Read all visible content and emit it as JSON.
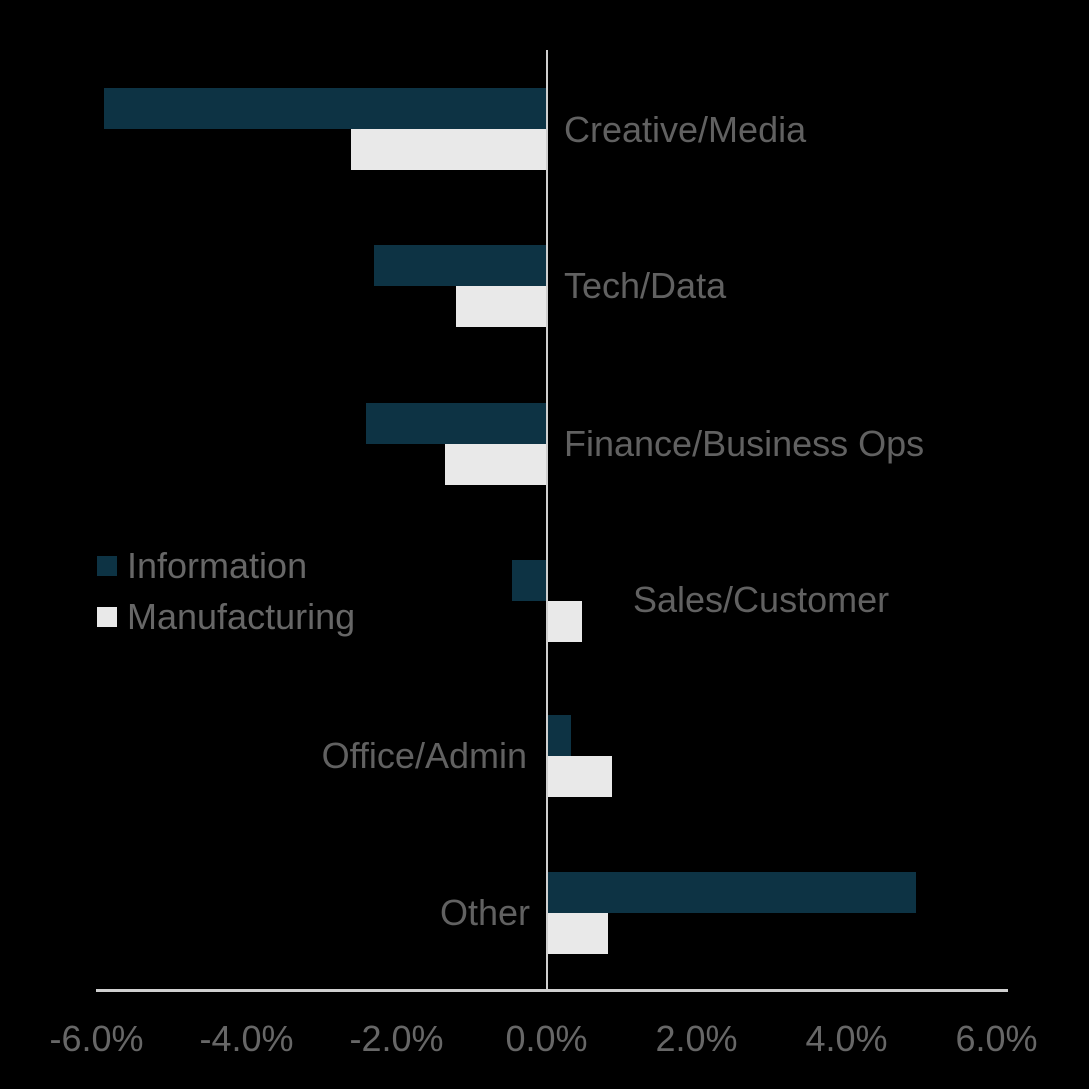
{
  "chart_data": {
    "type": "bar",
    "orientation": "horizontal",
    "title": "",
    "categories": [
      "Creative/Media",
      "Tech/Data",
      "Finance/Business Ops",
      "Sales/Customer",
      "Office/Admin",
      "Other"
    ],
    "series": [
      {
        "name": "Information",
        "color": "#0D3344",
        "values": [
          -5.9,
          -2.3,
          -2.4,
          -0.45,
          0.3,
          4.9
        ]
      },
      {
        "name": "Manufacturing",
        "color": "#E9E9E9",
        "values": [
          -2.6,
          -1.2,
          -1.35,
          0.45,
          0.85,
          0.8
        ]
      }
    ],
    "x_tick_labels": [
      "-6.0%",
      "-4.0%",
      "-2.0%",
      "0.0%",
      "2.0%",
      "4.0%",
      "6.0%"
    ],
    "x_tick_values": [
      -6,
      -4,
      -2,
      0,
      2,
      4,
      6
    ],
    "xlim": [
      -6,
      6
    ],
    "value_unit": "percent",
    "legend_position": "center-left",
    "grid": false
  },
  "legend": {
    "items": [
      {
        "label": "Information",
        "color": "#0D3344"
      },
      {
        "label": "Manufacturing",
        "color": "#E9E9E9"
      }
    ]
  },
  "colors": {
    "background": "#000000",
    "information_bar": "#0D3344",
    "manufacturing_bar": "#E9E9E9",
    "category_text": "#616161",
    "tick_text": "#676767",
    "axis_line": "#CFCFCF"
  }
}
